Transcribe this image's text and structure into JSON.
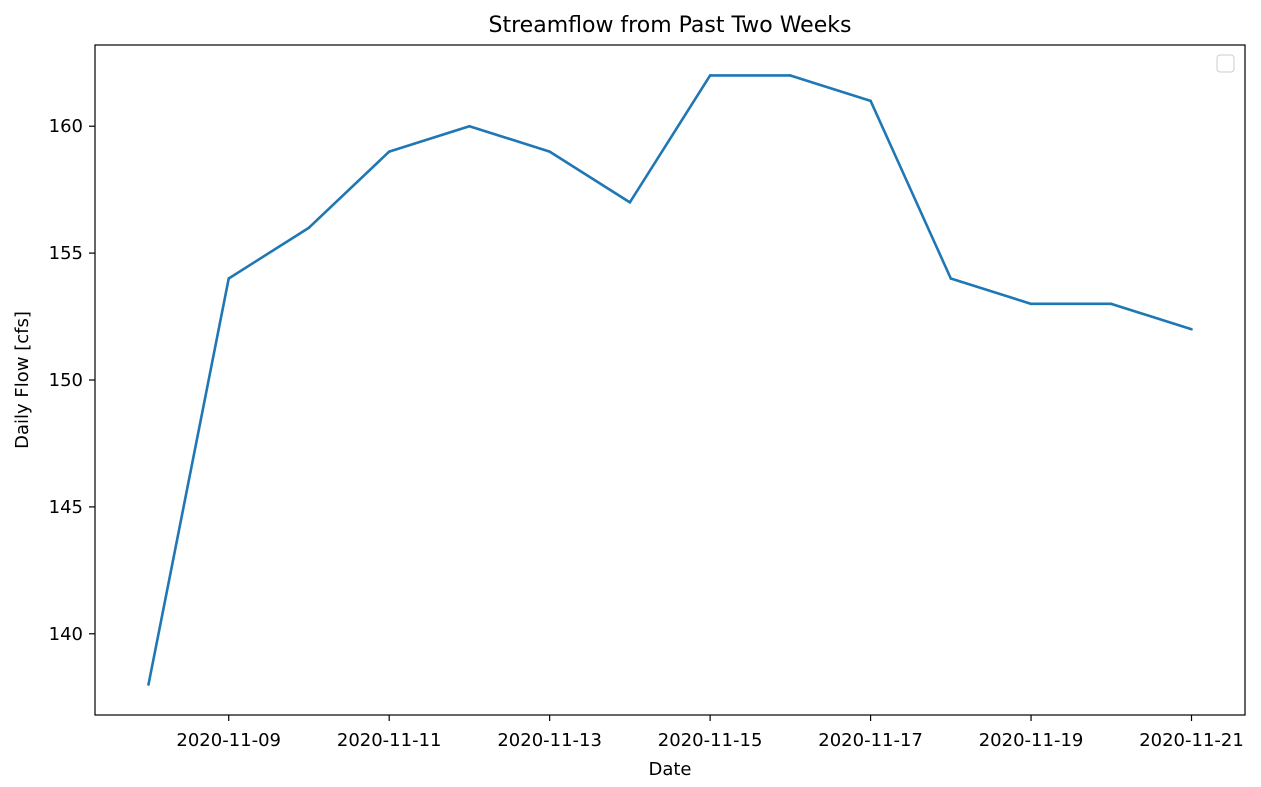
{
  "chart_data": {
    "type": "line",
    "title": "Streamflow from Past Two Weeks",
    "xlabel": "Date",
    "ylabel": "Daily Flow [cfs]",
    "x_tick_labels": [
      "2020-11-09",
      "2020-11-11",
      "2020-11-13",
      "2020-11-15",
      "2020-11-17",
      "2020-11-19",
      "2020-11-21"
    ],
    "y_tick_labels": [
      "140",
      "145",
      "150",
      "155",
      "160"
    ],
    "x_ticks": [
      "2020-11-09",
      "2020-11-11",
      "2020-11-13",
      "2020-11-15",
      "2020-11-17",
      "2020-11-19",
      "2020-11-21"
    ],
    "y_ticks": [
      140,
      145,
      150,
      155,
      160
    ],
    "xlim": [
      "2020-11-07 08:00",
      "2020-11-21 16:00"
    ],
    "ylim": [
      136.8,
      163.2
    ],
    "grid": false,
    "legend": {
      "placement": "top-right",
      "entries": []
    },
    "x": [
      "2020-11-08",
      "2020-11-09",
      "2020-11-10",
      "2020-11-11",
      "2020-11-12",
      "2020-11-13",
      "2020-11-14",
      "2020-11-15",
      "2020-11-16",
      "2020-11-17",
      "2020-11-18",
      "2020-11-19",
      "2020-11-20",
      "2020-11-21"
    ],
    "series": [
      {
        "color": "#1f77b4",
        "values": [
          138,
          154,
          156,
          159,
          160,
          159,
          157,
          162,
          162,
          161,
          154,
          153,
          153,
          152
        ]
      }
    ]
  }
}
